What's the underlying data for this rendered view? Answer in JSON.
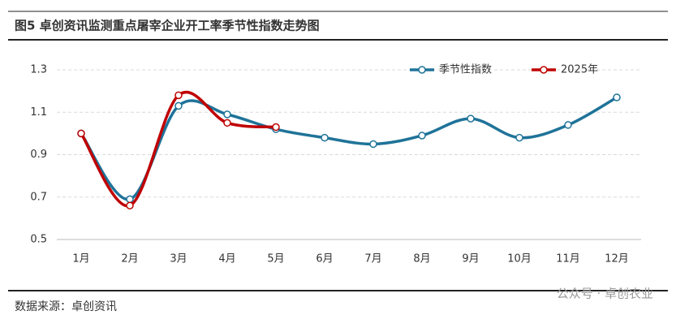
{
  "chart_data": {
    "type": "line",
    "title": "图5 卓创资讯监测重点屠宰企业开工率季节性指数走势图",
    "source": "数据来源：卓创资讯",
    "watermark": "公众号 · 卓创农业",
    "categories": [
      "1月",
      "2月",
      "3月",
      "4月",
      "5月",
      "6月",
      "7月",
      "8月",
      "9月",
      "10月",
      "11月",
      "12月"
    ],
    "series": [
      {
        "name": "季节性指数",
        "color": "#1f7399",
        "values": [
          1.0,
          0.69,
          1.13,
          1.09,
          1.02,
          0.98,
          0.95,
          0.99,
          1.07,
          0.98,
          1.04,
          1.17
        ]
      },
      {
        "name": "2025年",
        "color": "#c00000",
        "values": [
          1.0,
          0.66,
          1.18,
          1.05,
          1.03,
          null,
          null,
          null,
          null,
          null,
          null,
          null
        ]
      }
    ],
    "ylim": [
      0.5,
      1.3
    ],
    "yticks": [
      0.5,
      0.7,
      0.9,
      1.1,
      1.3
    ],
    "grid": true,
    "legend": "top-right"
  }
}
